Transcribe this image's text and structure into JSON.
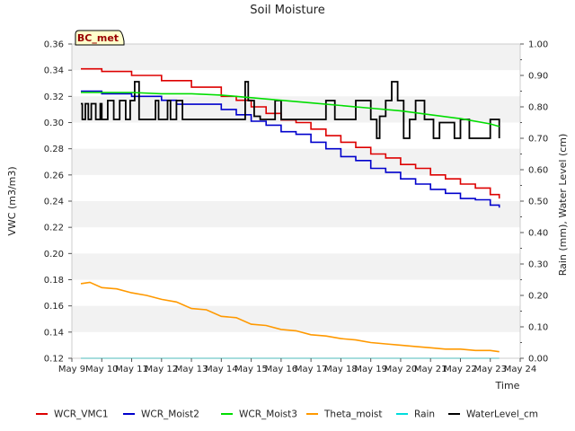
{
  "chart_data": {
    "type": "line",
    "title": "Soil Moisture",
    "station_label": "BC_met",
    "xlabel": "Time",
    "ylabel_left": "VWC (m3/m3)",
    "ylabel_right": "Rain (mm), Water Level (cm)",
    "xlim": [
      9,
      24
    ],
    "ylim_left": [
      0.12,
      0.36
    ],
    "ylim_right": [
      0.0,
      1.0
    ],
    "x_ticks": [
      9,
      10,
      11,
      12,
      13,
      14,
      15,
      16,
      17,
      18,
      19,
      20,
      21,
      22,
      23,
      24
    ],
    "x_tick_labels": [
      "May 9",
      "May 10",
      "May 11",
      "May 12",
      "May 13",
      "May 14",
      "May 15",
      "May 16",
      "May 17",
      "May 18",
      "May 19",
      "May 20",
      "May 21",
      "May 22",
      "May 23",
      "May 24"
    ],
    "y_ticks_left": [
      0.12,
      0.14,
      0.16,
      0.18,
      0.2,
      0.22,
      0.24,
      0.26,
      0.28,
      0.3,
      0.32,
      0.34,
      0.36
    ],
    "y_tick_labels_left": [
      "0.12",
      "0.14",
      "0.16",
      "0.18",
      "0.20",
      "0.22",
      "0.24",
      "0.26",
      "0.28",
      "0.30",
      "0.32",
      "0.34",
      "0.36"
    ],
    "y_ticks_right": [
      0.0,
      0.1,
      0.2,
      0.3,
      0.4,
      0.5,
      0.6,
      0.7,
      0.8,
      0.9,
      1.0
    ],
    "y_tick_labels_right": [
      "0.00",
      "0.10",
      "0.20",
      "0.30",
      "0.40",
      "0.50",
      "0.60",
      "0.70",
      "0.80",
      "0.90",
      "1.00"
    ],
    "legend_position": "bottom",
    "series": [
      {
        "name": "WCR_VMC1",
        "color": "#dd0000",
        "axis": "left",
        "step": true,
        "x": [
          9.3,
          10,
          11,
          12,
          13,
          14,
          14.5,
          15,
          15.5,
          16,
          16.5,
          17,
          17.5,
          18,
          18.5,
          19,
          19.5,
          20,
          20.5,
          21,
          21.5,
          22,
          22.5,
          23,
          23.3
        ],
        "y": [
          0.341,
          0.339,
          0.336,
          0.332,
          0.327,
          0.32,
          0.317,
          0.312,
          0.307,
          0.302,
          0.3,
          0.295,
          0.29,
          0.285,
          0.281,
          0.276,
          0.273,
          0.268,
          0.265,
          0.26,
          0.257,
          0.253,
          0.25,
          0.245,
          0.242
        ]
      },
      {
        "name": "WCR_Moist2",
        "color": "#0000cc",
        "axis": "left",
        "step": true,
        "x": [
          9.3,
          10,
          11,
          12,
          12.5,
          13,
          14,
          14.5,
          15,
          15.5,
          16,
          16.5,
          17,
          17.5,
          18,
          18.5,
          19,
          19.5,
          20,
          20.5,
          21,
          21.5,
          22,
          22.5,
          23,
          23.3
        ],
        "y": [
          0.324,
          0.322,
          0.32,
          0.317,
          0.314,
          0.314,
          0.31,
          0.306,
          0.301,
          0.298,
          0.293,
          0.291,
          0.285,
          0.28,
          0.274,
          0.271,
          0.265,
          0.262,
          0.257,
          0.253,
          0.249,
          0.246,
          0.242,
          0.241,
          0.237,
          0.235
        ]
      },
      {
        "name": "WCR_Moist3",
        "color": "#00dd00",
        "axis": "left",
        "step": false,
        "x": [
          9.3,
          10,
          11,
          12,
          13,
          14,
          15,
          16,
          17,
          18,
          19,
          20,
          21,
          22,
          23,
          23.3
        ],
        "y": [
          0.323,
          0.323,
          0.323,
          0.322,
          0.322,
          0.321,
          0.319,
          0.317,
          0.315,
          0.313,
          0.311,
          0.309,
          0.306,
          0.303,
          0.299,
          0.297
        ]
      },
      {
        "name": "Theta_moist",
        "color": "#ff9900",
        "axis": "left",
        "step": false,
        "x": [
          9.3,
          9.6,
          10,
          10.5,
          11,
          11.5,
          12,
          12.5,
          13,
          13.5,
          14,
          14.5,
          15,
          15.5,
          16,
          16.5,
          17,
          17.5,
          18,
          18.5,
          19,
          19.5,
          20,
          20.5,
          21,
          21.5,
          22,
          22.5,
          23,
          23.3
        ],
        "y": [
          0.177,
          0.178,
          0.174,
          0.173,
          0.17,
          0.168,
          0.165,
          0.163,
          0.158,
          0.157,
          0.152,
          0.151,
          0.146,
          0.145,
          0.142,
          0.141,
          0.138,
          0.137,
          0.135,
          0.134,
          0.132,
          0.131,
          0.13,
          0.129,
          0.128,
          0.127,
          0.127,
          0.126,
          0.126,
          0.125
        ]
      },
      {
        "name": "Rain",
        "color": "#00dddd",
        "axis": "right",
        "step": false,
        "x": [
          9.3,
          23.3
        ],
        "y": [
          0.0,
          0.0
        ]
      },
      {
        "name": "WaterLevel_cm",
        "color": "#000000",
        "axis": "right",
        "step": true,
        "x": [
          9.3,
          9.35,
          9.45,
          9.55,
          9.65,
          9.8,
          9.95,
          10.0,
          10.2,
          10.4,
          10.6,
          10.8,
          10.95,
          11.1,
          11.25,
          11.4,
          11.8,
          11.9,
          12.2,
          12.3,
          12.5,
          12.7,
          13.0,
          14.0,
          14.8,
          14.9,
          15.1,
          15.3,
          15.8,
          16.0,
          16.3,
          16.5,
          17.0,
          17.5,
          17.8,
          18.0,
          18.5,
          19.0,
          19.2,
          19.3,
          19.5,
          19.7,
          19.9,
          20.1,
          20.3,
          20.5,
          20.8,
          21.1,
          21.3,
          21.5,
          21.8,
          22.0,
          22.3,
          22.7,
          23.0,
          23.3
        ],
        "y": [
          0.81,
          0.76,
          0.81,
          0.76,
          0.81,
          0.76,
          0.81,
          0.76,
          0.82,
          0.76,
          0.82,
          0.76,
          0.82,
          0.88,
          0.76,
          0.76,
          0.82,
          0.76,
          0.82,
          0.76,
          0.82,
          0.76,
          0.76,
          0.76,
          0.88,
          0.82,
          0.77,
          0.76,
          0.82,
          0.76,
          0.76,
          0.76,
          0.76,
          0.82,
          0.76,
          0.76,
          0.82,
          0.76,
          0.7,
          0.77,
          0.82,
          0.88,
          0.82,
          0.7,
          0.76,
          0.82,
          0.76,
          0.7,
          0.75,
          0.75,
          0.7,
          0.76,
          0.7,
          0.7,
          0.76,
          0.7
        ]
      }
    ]
  }
}
